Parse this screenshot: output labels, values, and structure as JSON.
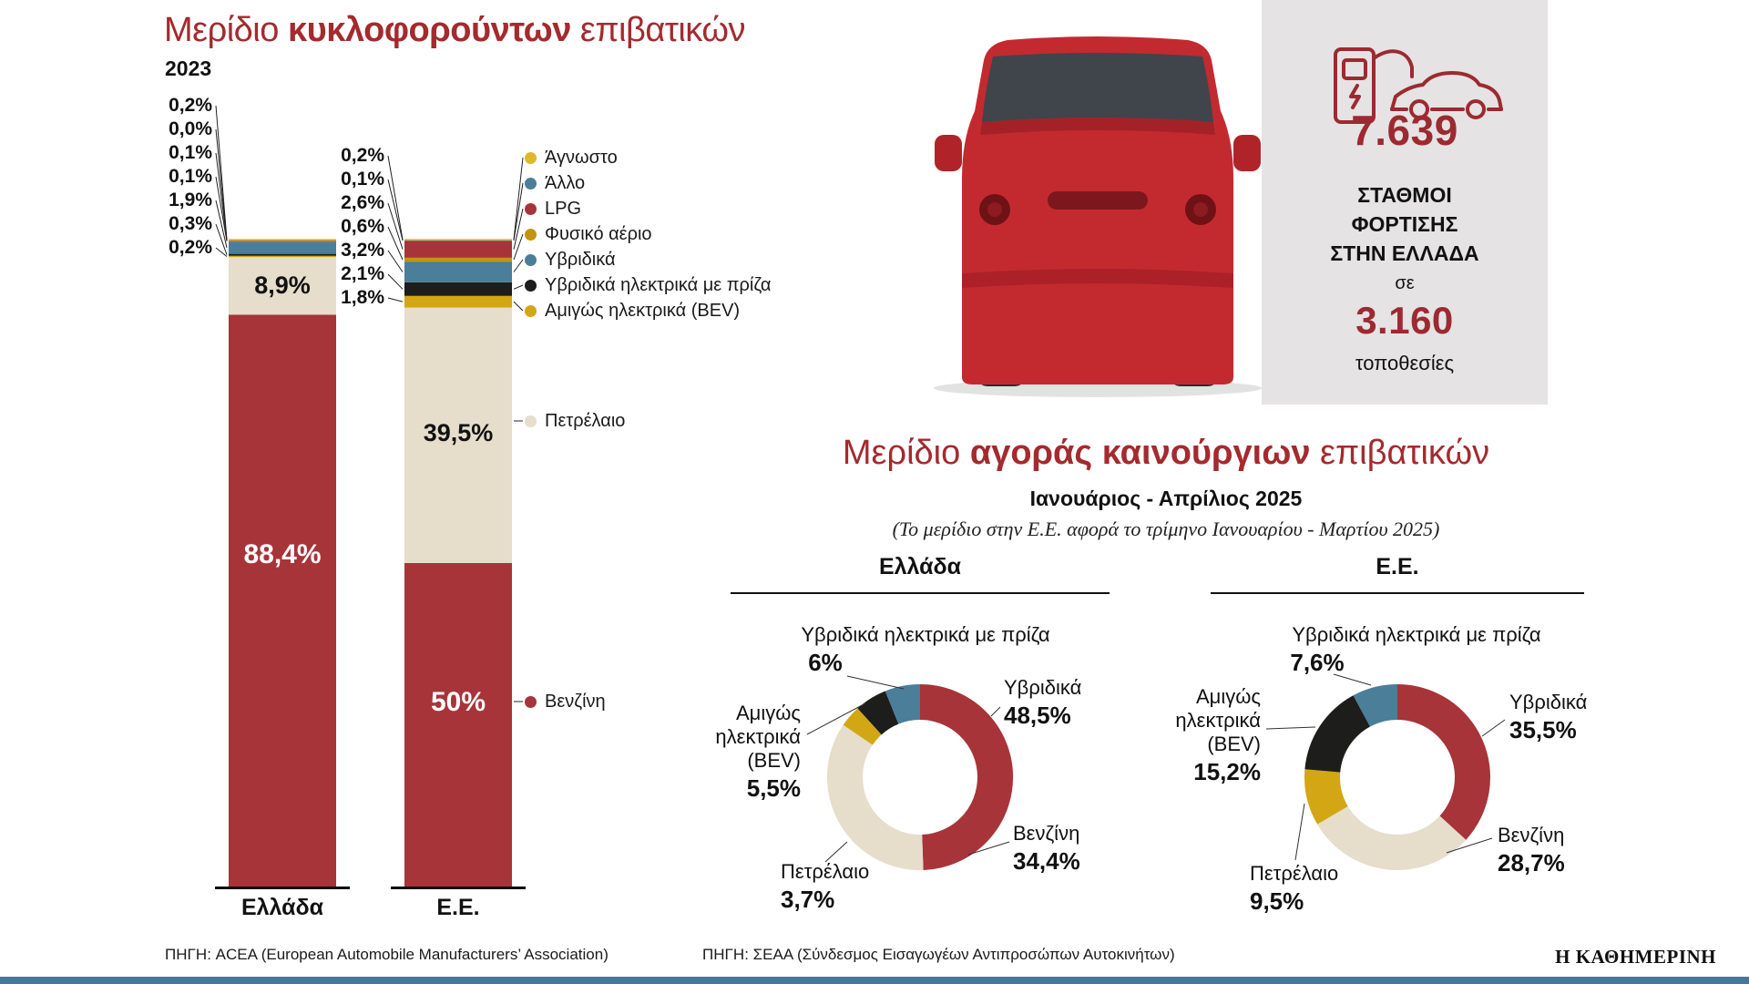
{
  "page": {
    "background": "#ffffff",
    "accent_red": "#a42a2e",
    "bottom_bar_color": "#46789c",
    "brand": "Η ΚΑΘΗΜΕΡΙΝΗ"
  },
  "left_chart": {
    "title_prefix": "Μερίδιο ",
    "title_bold": "κυκλοφορούντων",
    "title_suffix": " επιβατικών",
    "year": "2023",
    "source": "ΠΗΓΗ: ACEA (European Automobile Manufacturers’ Association)"
  },
  "stations_box": {
    "background": "#e5e3e4",
    "accent_color": "#9c2a30",
    "count": "7.639",
    "label_line1": "ΣΤΑΘΜΟΙ",
    "label_line2": "ΦΟΡΤΙΣΗΣ",
    "label_line3": "ΣΤΗΝ ΕΛΛΑΔΑ",
    "connector_word": "σε",
    "locations_count": "3.160",
    "locations_word": "τοποθεσίες"
  },
  "right_chart": {
    "title_prefix": "Μερίδιο ",
    "title_bold": "αγοράς καινούργιων",
    "title_suffix": " επιβατικών",
    "subtitle": "Ιανουάριος - Απρίλιος 2025",
    "note": "(Το μερίδιο στην Ε.Ε. αφορά το τρίμηνο Ιανουαρίου - Μαρτίου 2025)",
    "source": "ΠΗΓΗ: ΣΕΑΑ (Σύνδεσμος Εισαγωγέων Αντιπροσώπων Αυτοκινήτων)"
  },
  "chart_data": [
    {
      "type": "bar",
      "variant": "stacked-100pct",
      "title": "Μερίδιο κυκλοφορούντων επιβατικών",
      "year": "2023",
      "unit": "%",
      "ylim": [
        0,
        100
      ],
      "grid": false,
      "legend_position": "right",
      "categories": [
        "Ελλάδα",
        "Ε.Ε."
      ],
      "series": [
        {
          "name": "Βενζίνη",
          "color": "#a73439",
          "values": [
            88.4,
            50.0
          ],
          "labels": [
            "88,4%",
            "50%"
          ]
        },
        {
          "name": "Πετρέλαιο",
          "color": "#e6ddcb",
          "values": [
            8.9,
            39.5
          ],
          "labels": [
            "8,9%",
            "39,5%"
          ]
        },
        {
          "name": "Αμιγώς ηλεκτρικά (BEV)",
          "color": "#d3a615",
          "values": [
            0.2,
            1.8
          ],
          "labels": [
            "0,2%",
            "1,8%"
          ]
        },
        {
          "name": "Υβριδικά ηλεκτρικά με πρίζα",
          "color": "#1d1d1b",
          "values": [
            0.3,
            2.1
          ],
          "labels": [
            "0,3%",
            "2,1%"
          ]
        },
        {
          "name": "Υβριδικά",
          "color": "#4a7e99",
          "values": [
            1.9,
            3.2
          ],
          "labels": [
            "1,9%",
            "3,2%"
          ]
        },
        {
          "name": "Φυσικό αέριο",
          "color": "#c2950e",
          "values": [
            0.1,
            0.6
          ],
          "labels": [
            "0,1%",
            "0,6%"
          ]
        },
        {
          "name": "LPG",
          "color": "#a73439",
          "values": [
            0.1,
            2.6
          ],
          "labels": [
            "0,1%",
            "2,6%"
          ]
        },
        {
          "name": "Άλλο",
          "color": "#4a7e99",
          "values": [
            0.0,
            0.1
          ],
          "labels": [
            "0,0%",
            "0,1%"
          ]
        },
        {
          "name": "Άγνωστο",
          "color": "#ddb92a",
          "values": [
            0.2,
            0.2
          ],
          "labels": [
            "0,2%",
            "0,2%"
          ]
        }
      ]
    },
    {
      "type": "pie",
      "variant": "donut",
      "title": "Ελλάδα",
      "unit": "%",
      "slices": [
        {
          "name": "Υβριδικά",
          "value": 48.5,
          "label": "48,5%",
          "color": "#a73439"
        },
        {
          "name": "Βενζίνη",
          "value": 34.4,
          "label": "34,4%",
          "color": "#e6ddcb"
        },
        {
          "name": "Πετρέλαιο",
          "value": 3.7,
          "label": "3,7%",
          "color": "#d2a713"
        },
        {
          "name": "Αμιγώς ηλεκτρικά (BEV)",
          "value": 5.5,
          "label": "5,5%",
          "color": "#1d1d1b"
        },
        {
          "name": "Υβριδικά ηλεκτρικά με πρίζα",
          "value": 6.0,
          "label": "6%",
          "color": "#4a7e99"
        }
      ]
    },
    {
      "type": "pie",
      "variant": "donut",
      "title": "Ε.Ε.",
      "unit": "%",
      "slices": [
        {
          "name": "Υβριδικά",
          "value": 35.5,
          "label": "35,5%",
          "color": "#a73439"
        },
        {
          "name": "Βενζίνη",
          "value": 28.7,
          "label": "28,7%",
          "color": "#e6ddcb"
        },
        {
          "name": "Πετρέλαιο",
          "value": 9.5,
          "label": "9,5%",
          "color": "#d2a713"
        },
        {
          "name": "Αμιγώς ηλεκτρικά (BEV)",
          "value": 15.2,
          "label": "15,2%",
          "color": "#1d1d1b"
        },
        {
          "name": "Υβριδικά ηλεκτρικά με πρίζα",
          "value": 7.6,
          "label": "7,6%",
          "color": "#4a7e99"
        }
      ]
    }
  ]
}
